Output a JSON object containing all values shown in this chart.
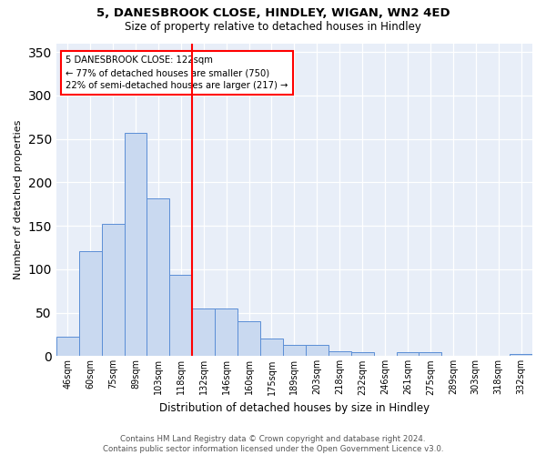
{
  "title1": "5, DANESBROOK CLOSE, HINDLEY, WIGAN, WN2 4ED",
  "title2": "Size of property relative to detached houses in Hindley",
  "xlabel": "Distribution of detached houses by size in Hindley",
  "ylabel": "Number of detached properties",
  "bin_labels": [
    "46sqm",
    "60sqm",
    "75sqm",
    "89sqm",
    "103sqm",
    "118sqm",
    "132sqm",
    "146sqm",
    "160sqm",
    "175sqm",
    "189sqm",
    "203sqm",
    "218sqm",
    "232sqm",
    "246sqm",
    "261sqm",
    "275sqm",
    "289sqm",
    "303sqm",
    "318sqm",
    "332sqm"
  ],
  "bar_heights": [
    22,
    121,
    152,
    257,
    181,
    94,
    55,
    55,
    40,
    20,
    13,
    13,
    6,
    5,
    0,
    5,
    5,
    0,
    0,
    0,
    3
  ],
  "bar_color": "#c9d9f0",
  "bar_edge_color": "#5b8ed6",
  "vline_x": 5.5,
  "annotation_line1": "5 DANESBROOK CLOSE: 122sqm",
  "annotation_line2": "← 77% of detached houses are smaller (750)",
  "annotation_line3": "22% of semi-detached houses are larger (217) →",
  "footer1": "Contains HM Land Registry data © Crown copyright and database right 2024.",
  "footer2": "Contains public sector information licensed under the Open Government Licence v3.0.",
  "ylim": [
    0,
    360
  ],
  "yticks": [
    0,
    50,
    100,
    150,
    200,
    250,
    300,
    350
  ]
}
